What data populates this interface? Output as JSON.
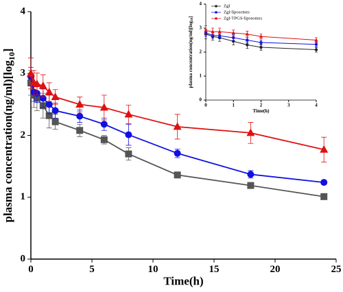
{
  "chart_data": [
    {
      "type": "line",
      "x_label": "Time(h)",
      "y_label": [
        "plasma concentration(ng/ml)[log",
        "10",
        "]"
      ],
      "x": [
        0,
        0.25,
        0.5,
        1,
        1.5,
        2,
        4,
        6,
        8,
        12,
        18,
        24
      ],
      "series": [
        {
          "color": "#555555",
          "marker": "square",
          "values": [
            2.85,
            2.65,
            2.6,
            2.48,
            2.32,
            2.22,
            2.08,
            1.93,
            1.7,
            1.36,
            1.19,
            1.01
          ],
          "errors": [
            0.2,
            0.2,
            0.2,
            0.2,
            0.2,
            0.12,
            0.1,
            0.07,
            0.1,
            0.03,
            0.03,
            0.03
          ]
        },
        {
          "color": "#1010e0",
          "marker": "circle",
          "values": [
            2.95,
            2.7,
            2.68,
            2.6,
            2.5,
            2.4,
            2.31,
            2.18,
            2.01,
            1.71,
            1.37,
            1.24
          ],
          "errors": [
            0.15,
            0.15,
            0.15,
            0.15,
            0.15,
            0.12,
            0.1,
            0.1,
            0.17,
            0.07,
            0.06,
            0.03
          ]
        },
        {
          "color": "#e01010",
          "marker": "triangle",
          "values": [
            3.0,
            2.85,
            2.83,
            2.8,
            2.7,
            2.62,
            2.5,
            2.45,
            2.34,
            2.14,
            2.04,
            1.77
          ],
          "errors": [
            0.25,
            0.2,
            0.18,
            0.18,
            0.15,
            0.12,
            0.12,
            0.2,
            0.15,
            0.2,
            0.17,
            0.2
          ]
        }
      ],
      "xlim": [
        0,
        25
      ],
      "xticks": [
        0,
        5,
        10,
        15,
        20,
        25
      ],
      "ylim": [
        0,
        4
      ],
      "yticks": [
        0,
        1,
        2,
        3,
        4
      ]
    },
    {
      "type": "line",
      "x_label": "Time(h)",
      "y_label": [
        "plasma concentration(ng/ml)[log",
        "10",
        "]"
      ],
      "x": [
        0,
        0.25,
        0.5,
        1,
        1.5,
        2,
        4
      ],
      "series": [
        {
          "name": "ZgI",
          "color": "#222222",
          "marker": "circle",
          "values": [
            2.75,
            2.65,
            2.6,
            2.45,
            2.3,
            2.2,
            2.1
          ],
          "errors": [
            0.2,
            0.15,
            0.15,
            0.15,
            0.15,
            0.12,
            0.1
          ]
        },
        {
          "name": "ZgI-liposomes",
          "color": "#1010e0",
          "marker": "circle",
          "values": [
            2.8,
            2.7,
            2.68,
            2.6,
            2.5,
            2.4,
            2.32
          ],
          "errors": [
            0.15,
            0.12,
            0.12,
            0.12,
            0.12,
            0.1,
            0.1
          ]
        },
        {
          "name": "ZgI-TPGS-liposomes",
          "color": "#e01010",
          "marker": "triangle",
          "values": [
            2.9,
            2.85,
            2.85,
            2.8,
            2.75,
            2.65,
            2.5
          ],
          "errors": [
            0.2,
            0.15,
            0.15,
            0.12,
            0.12,
            0.1,
            0.1
          ]
        }
      ],
      "xlim": [
        0,
        4
      ],
      "xticks": [
        0,
        1,
        2,
        3,
        4
      ],
      "ylim": [
        0,
        4
      ],
      "yticks": [
        0,
        1,
        2,
        3,
        4
      ],
      "legend": "upper-left"
    }
  ]
}
